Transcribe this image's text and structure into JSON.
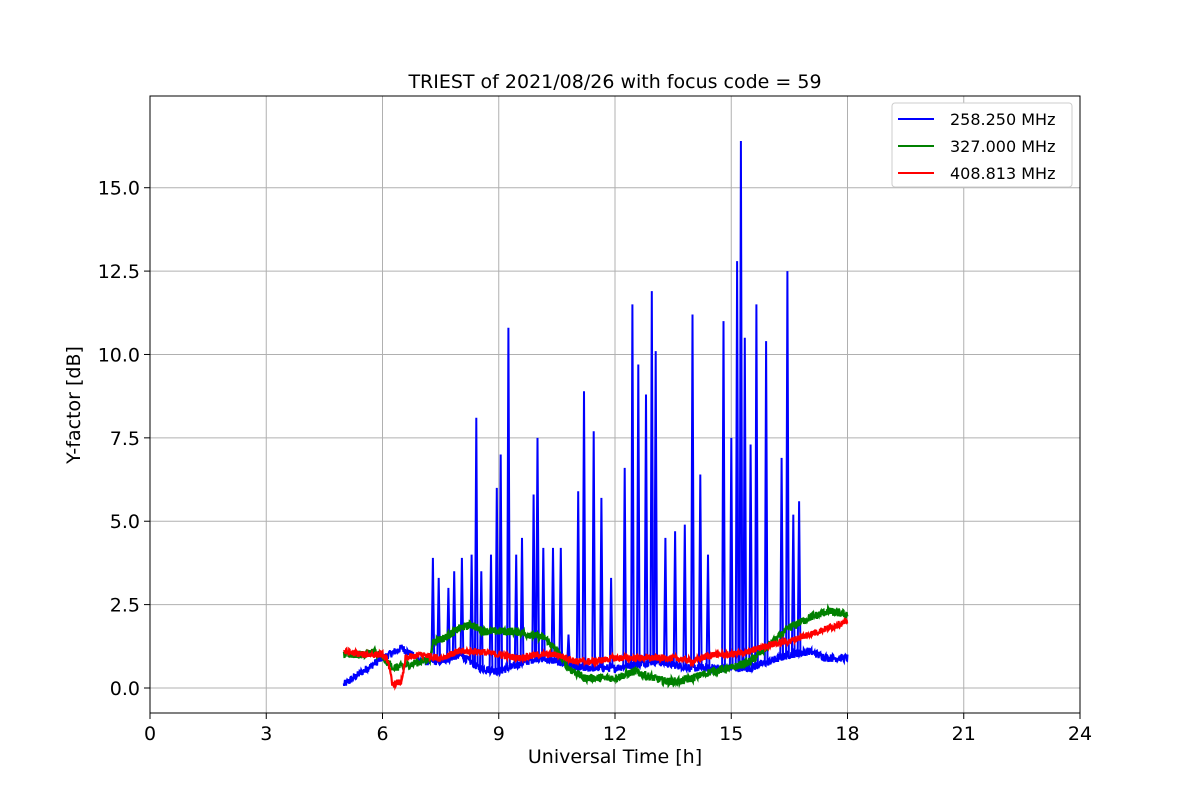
{
  "chart_data": {
    "type": "line",
    "title": "TRIEST of 2021/08/26 with focus code = 59",
    "xlabel": "Universal Time [h]",
    "ylabel": "Y-factor [dB]",
    "xlim": [
      0,
      24
    ],
    "ylim": [
      -0.75,
      17.75
    ],
    "xticks": [
      0,
      3,
      6,
      9,
      12,
      15,
      18,
      21,
      24
    ],
    "xtick_labels": [
      "0",
      "3",
      "6",
      "9",
      "12",
      "15",
      "18",
      "21",
      "24"
    ],
    "yticks": [
      0.0,
      2.5,
      5.0,
      7.5,
      10.0,
      12.5,
      15.0
    ],
    "ytick_labels": [
      "0.0",
      "2.5",
      "5.0",
      "7.5",
      "10.0",
      "12.5",
      "15.0"
    ],
    "grid": true,
    "legend_position": "top-right",
    "series": [
      {
        "name": "258.250 MHz",
        "color": "#0000ff",
        "baseline": [
          [
            5.0,
            0.1
          ],
          [
            5.5,
            0.5
          ],
          [
            6.0,
            0.9
          ],
          [
            6.5,
            1.2
          ],
          [
            7.0,
            0.8
          ],
          [
            7.5,
            0.8
          ],
          [
            8.0,
            1.0
          ],
          [
            8.5,
            0.6
          ],
          [
            9.0,
            0.5
          ],
          [
            9.5,
            0.7
          ],
          [
            10.0,
            0.9
          ],
          [
            10.5,
            0.8
          ],
          [
            11.0,
            0.6
          ],
          [
            11.5,
            0.6
          ],
          [
            12.0,
            0.6
          ],
          [
            12.5,
            0.7
          ],
          [
            13.0,
            0.8
          ],
          [
            13.5,
            0.7
          ],
          [
            14.0,
            0.6
          ],
          [
            14.5,
            0.6
          ],
          [
            15.0,
            0.6
          ],
          [
            15.5,
            0.6
          ],
          [
            16.0,
            0.8
          ],
          [
            16.5,
            1.0
          ],
          [
            17.0,
            1.1
          ],
          [
            17.5,
            0.9
          ],
          [
            18.0,
            0.9
          ]
        ],
        "spikes": [
          [
            7.3,
            3.9
          ],
          [
            7.45,
            3.3
          ],
          [
            7.7,
            3.0
          ],
          [
            7.85,
            3.5
          ],
          [
            8.05,
            3.9
          ],
          [
            8.3,
            4.0
          ],
          [
            8.42,
            8.1
          ],
          [
            8.55,
            3.5
          ],
          [
            8.8,
            4.0
          ],
          [
            8.95,
            6.0
          ],
          [
            9.05,
            7.0
          ],
          [
            9.25,
            10.8
          ],
          [
            9.45,
            4.0
          ],
          [
            9.6,
            4.5
          ],
          [
            9.9,
            5.8
          ],
          [
            10.0,
            7.5
          ],
          [
            10.15,
            4.2
          ],
          [
            10.4,
            4.2
          ],
          [
            10.6,
            4.2
          ],
          [
            10.8,
            1.6
          ],
          [
            11.05,
            5.9
          ],
          [
            11.2,
            8.9
          ],
          [
            11.45,
            7.7
          ],
          [
            11.65,
            5.7
          ],
          [
            11.9,
            3.3
          ],
          [
            12.25,
            6.6
          ],
          [
            12.45,
            11.5
          ],
          [
            12.6,
            9.7
          ],
          [
            12.8,
            8.8
          ],
          [
            12.95,
            11.9
          ],
          [
            13.05,
            10.1
          ],
          [
            13.3,
            4.5
          ],
          [
            13.55,
            4.7
          ],
          [
            13.8,
            4.9
          ],
          [
            14.0,
            11.2
          ],
          [
            14.2,
            6.4
          ],
          [
            14.4,
            4.0
          ],
          [
            14.8,
            11.0
          ],
          [
            15.0,
            7.5
          ],
          [
            15.15,
            12.8
          ],
          [
            15.25,
            16.4
          ],
          [
            15.35,
            10.5
          ],
          [
            15.5,
            7.3
          ],
          [
            15.65,
            11.5
          ],
          [
            15.9,
            10.4
          ],
          [
            16.3,
            6.9
          ],
          [
            16.45,
            12.5
          ],
          [
            16.6,
            5.2
          ],
          [
            16.75,
            5.6
          ]
        ]
      },
      {
        "name": "327.000 MHz",
        "color": "#008000",
        "points": [
          [
            5.0,
            1.0
          ],
          [
            5.5,
            1.0
          ],
          [
            5.8,
            1.1
          ],
          [
            6.0,
            0.9
          ],
          [
            6.3,
            0.6
          ],
          [
            6.7,
            0.7
          ],
          [
            7.0,
            0.8
          ],
          [
            7.25,
            0.9
          ],
          [
            7.3,
            1.4
          ],
          [
            7.6,
            1.5
          ],
          [
            8.0,
            1.8
          ],
          [
            8.3,
            1.9
          ],
          [
            8.6,
            1.7
          ],
          [
            9.0,
            1.7
          ],
          [
            9.4,
            1.7
          ],
          [
            9.8,
            1.6
          ],
          [
            10.2,
            1.5
          ],
          [
            10.5,
            1.1
          ],
          [
            10.8,
            0.6
          ],
          [
            11.2,
            0.3
          ],
          [
            11.6,
            0.3
          ],
          [
            12.0,
            0.3
          ],
          [
            12.5,
            0.5
          ],
          [
            13.0,
            0.3
          ],
          [
            13.3,
            0.2
          ],
          [
            13.7,
            0.2
          ],
          [
            14.0,
            0.3
          ],
          [
            14.5,
            0.5
          ],
          [
            15.0,
            0.6
          ],
          [
            15.5,
            0.8
          ],
          [
            16.0,
            1.3
          ],
          [
            16.5,
            1.8
          ],
          [
            17.0,
            2.1
          ],
          [
            17.5,
            2.3
          ],
          [
            18.0,
            2.2
          ]
        ]
      },
      {
        "name": "408.813 MHz",
        "color": "#ff0000",
        "points": [
          [
            5.0,
            1.1
          ],
          [
            5.5,
            1.0
          ],
          [
            6.0,
            1.0
          ],
          [
            6.15,
            0.8
          ],
          [
            6.25,
            0.1
          ],
          [
            6.5,
            0.2
          ],
          [
            6.6,
            0.9
          ],
          [
            7.0,
            1.0
          ],
          [
            7.5,
            0.9
          ],
          [
            8.0,
            1.1
          ],
          [
            8.5,
            1.1
          ],
          [
            9.0,
            1.0
          ],
          [
            9.5,
            0.9
          ],
          [
            10.0,
            1.0
          ],
          [
            10.5,
            1.0
          ],
          [
            11.0,
            0.8
          ],
          [
            11.5,
            0.8
          ],
          [
            12.0,
            0.9
          ],
          [
            12.5,
            0.9
          ],
          [
            13.0,
            0.9
          ],
          [
            13.5,
            0.9
          ],
          [
            14.0,
            0.8
          ],
          [
            14.5,
            1.0
          ],
          [
            15.0,
            1.0
          ],
          [
            15.5,
            1.1
          ],
          [
            16.0,
            1.3
          ],
          [
            16.5,
            1.4
          ],
          [
            17.0,
            1.6
          ],
          [
            17.5,
            1.8
          ],
          [
            18.0,
            2.0
          ]
        ]
      }
    ]
  }
}
